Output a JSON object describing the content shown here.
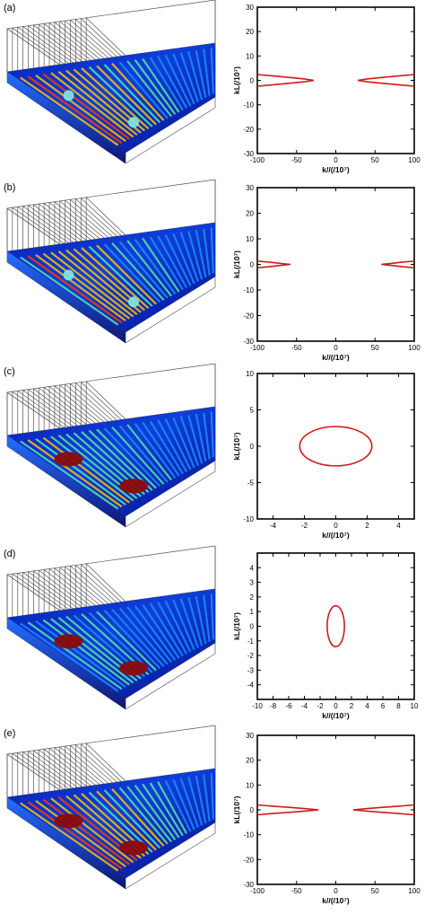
{
  "figure": {
    "panels": [
      {
        "label": "(a)",
        "render": {
          "hotspots": "cyan",
          "stripe_heat": 0.85
        },
        "chart_data": {
          "type": "line",
          "xlabel": "k//(/10⁷)",
          "ylabel": "kL(/10⁷)",
          "xlim": [
            -100,
            100
          ],
          "ylim": [
            -30,
            30
          ],
          "xticks": [
            -100,
            -50,
            0,
            50,
            100
          ],
          "yticks": [
            -30,
            -20,
            -10,
            0,
            10,
            20,
            30
          ],
          "curve": "double-cusp",
          "series": [
            {
              "x": [
                -100,
                -80,
                -60,
                -40,
                -28,
                -40,
                -60,
                -80,
                -100
              ],
              "y": [
                2.4,
                1.8,
                1.2,
                0.6,
                0,
                -0.6,
                -1.2,
                -1.8,
                -2.4
              ]
            },
            {
              "x": [
                100,
                80,
                60,
                40,
                28,
                40,
                60,
                80,
                100
              ],
              "y": [
                2.4,
                1.8,
                1.2,
                0.6,
                0,
                -0.6,
                -1.2,
                -1.8,
                -2.4
              ]
            }
          ]
        }
      },
      {
        "label": "(b)",
        "render": {
          "hotspots": "cyan",
          "stripe_heat": 0.75
        },
        "chart_data": {
          "type": "line",
          "xlabel": "k//(/10⁷)",
          "ylabel": "kL(/10⁷)",
          "xlim": [
            -100,
            100
          ],
          "ylim": [
            -30,
            30
          ],
          "xticks": [
            -100,
            -50,
            0,
            50,
            100
          ],
          "yticks": [
            -30,
            -20,
            -10,
            0,
            10,
            20,
            30
          ],
          "curve": "double-cusp",
          "series": [
            {
              "x": [
                -100,
                -85,
                -70,
                -58,
                -70,
                -85,
                -100
              ],
              "y": [
                1.3,
                0.9,
                0.4,
                0,
                -0.4,
                -0.9,
                -1.3
              ]
            },
            {
              "x": [
                100,
                85,
                70,
                58,
                70,
                85,
                100
              ],
              "y": [
                1.3,
                0.9,
                0.4,
                0,
                -0.4,
                -0.9,
                -1.3
              ]
            }
          ]
        }
      },
      {
        "label": "(c)",
        "render": {
          "hotspots": "red",
          "stripe_heat": 0.6
        },
        "chart_data": {
          "type": "line",
          "xlabel": "k//(/10⁷)",
          "ylabel": "kL(/10⁷)",
          "xlim": [
            -5,
            5
          ],
          "ylim": [
            -10,
            10
          ],
          "xticks": [
            -4,
            -2,
            0,
            2,
            4
          ],
          "yticks": [
            -10,
            -5,
            0,
            5,
            10
          ],
          "curve": "ellipse",
          "ellipse": {
            "cx": 0,
            "cy": 0,
            "rx": 2.3,
            "ry": 2.7
          }
        }
      },
      {
        "label": "(d)",
        "render": {
          "hotspots": "red",
          "stripe_heat": 0.45
        },
        "chart_data": {
          "type": "line",
          "xlabel": "k//(/10⁷)",
          "ylabel": "kL(/10⁷)",
          "xlim": [
            -10,
            10
          ],
          "ylim": [
            -5,
            5
          ],
          "xticks": [
            -10,
            -8,
            -6,
            -4,
            -2,
            0,
            2,
            4,
            6,
            8,
            10
          ],
          "yticks": [
            -4,
            -3,
            -2,
            -1,
            0,
            1,
            2,
            3,
            4
          ],
          "curve": "ellipse",
          "ellipse": {
            "cx": 0,
            "cy": 0,
            "rx": 1.1,
            "ry": 1.4
          }
        }
      },
      {
        "label": "(e)",
        "render": {
          "hotspots": "red",
          "stripe_heat": 0.9
        },
        "chart_data": {
          "type": "line",
          "xlabel": "k//(/10⁷)",
          "ylabel": "kL(/10⁷)",
          "xlim": [
            -100,
            100
          ],
          "ylim": [
            -30,
            30
          ],
          "xticks": [
            -100,
            -50,
            0,
            50,
            100
          ],
          "yticks": [
            -30,
            -20,
            -10,
            0,
            10,
            20,
            30
          ],
          "curve": "double-cusp",
          "series": [
            {
              "x": [
                -100,
                -80,
                -60,
                -40,
                -22,
                -40,
                -60,
                -80,
                -100
              ],
              "y": [
                2.0,
                1.5,
                1.0,
                0.5,
                0,
                -0.5,
                -1.0,
                -1.5,
                -2.0
              ]
            },
            {
              "x": [
                100,
                80,
                60,
                40,
                22,
                40,
                60,
                80,
                100
              ],
              "y": [
                2.0,
                1.5,
                1.0,
                0.5,
                0,
                -0.5,
                -1.0,
                -1.5,
                -2.0
              ]
            }
          ]
        }
      }
    ],
    "colors": {
      "curve": "#d11a1a",
      "frame": "#000000",
      "hot_red": "#8b0a0a",
      "hot_cyan": "#7fe3e0",
      "plate_deep": "#0a0a9a",
      "wire": "#555555"
    }
  }
}
